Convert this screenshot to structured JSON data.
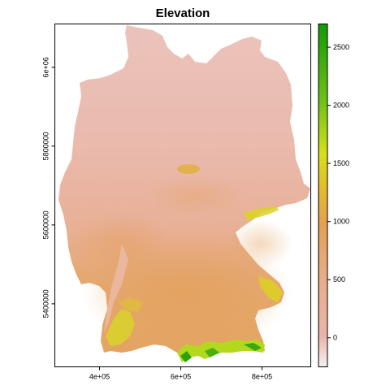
{
  "map": {
    "title": "Elevation",
    "x_axis": {
      "range": [
        290000,
        920000
      ],
      "ticks": [
        {
          "value": 400000,
          "label": "4e+05"
        },
        {
          "value": 600000,
          "label": "6e+05"
        },
        {
          "value": 800000,
          "label": "8e+05"
        }
      ]
    },
    "y_axis": {
      "range": [
        5240000,
        6110000
      ],
      "ticks": [
        {
          "value": 5400000,
          "label": "5400000"
        },
        {
          "value": 5600000,
          "label": "5600000"
        },
        {
          "value": 5800000,
          "label": "5800000"
        },
        {
          "value": 6000000,
          "label": "6e+06"
        }
      ]
    },
    "legend": {
      "range": [
        -250,
        2700
      ],
      "ticks": [
        {
          "value": 0,
          "label": "0"
        },
        {
          "value": 500,
          "label": "500"
        },
        {
          "value": 1000,
          "label": "1000"
        },
        {
          "value": 1500,
          "label": "1500"
        },
        {
          "value": 2000,
          "label": "2000"
        },
        {
          "value": 2500,
          "label": "2500"
        }
      ],
      "colors": [
        "#f2f2f2",
        "#eab59f",
        "#e29a63",
        "#e6b43a",
        "#d8dc1a",
        "#94d418",
        "#3aae0e",
        "#139c05"
      ]
    }
  }
}
